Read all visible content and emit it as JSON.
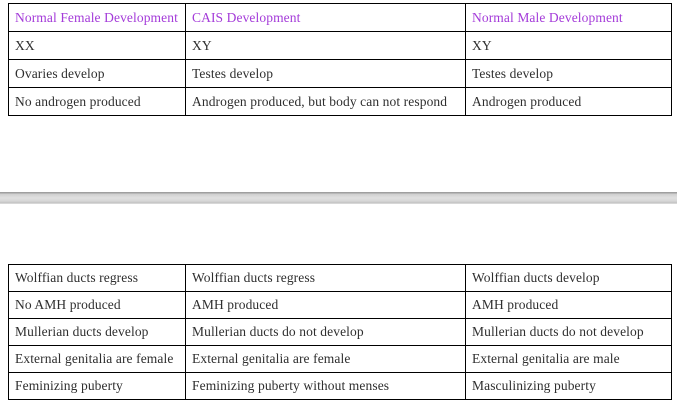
{
  "colors": {
    "header_text": "#a43bd9",
    "body_text": "#2e2e2e",
    "table_border": "#000000",
    "page_break_gray": "#d6d6d6",
    "page_background": "#ffffff"
  },
  "tables": {
    "top": {
      "columns": [
        "Normal Female Development",
        "CAIS Development",
        "Normal Male Development"
      ],
      "rows": [
        [
          "XX",
          "XY",
          "XY"
        ],
        [
          "Ovaries develop",
          "Testes develop",
          "Testes develop"
        ],
        [
          "No androgen produced",
          "Androgen produced, but body can not respond",
          "Androgen produced"
        ]
      ]
    },
    "bottom": {
      "rows": [
        [
          "Wolffian ducts regress",
          "Wolffian ducts regress",
          "Wolffian ducts develop"
        ],
        [
          "No AMH produced",
          "AMH produced",
          "AMH produced"
        ],
        [
          "Mullerian ducts develop",
          "Mullerian ducts do not develop",
          "Mullerian ducts do not develop"
        ],
        [
          "External genitalia are female",
          "External genitalia are female",
          "External genitalia are male"
        ],
        [
          "Feminizing puberty",
          "Feminizing puberty without menses",
          "Masculinizing puberty"
        ]
      ]
    }
  }
}
